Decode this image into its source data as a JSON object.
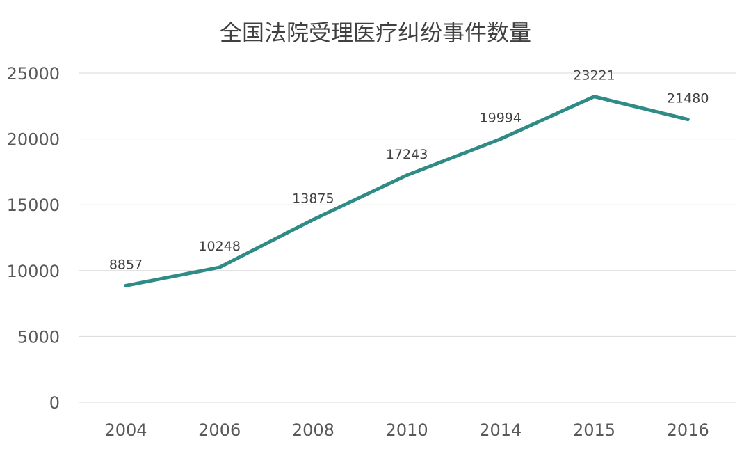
{
  "chart_data": {
    "type": "line",
    "title": "全国法院受理医疗纠纷事件数量",
    "xlabel": "",
    "ylabel": "",
    "categories": [
      "2004",
      "2006",
      "2008",
      "2010",
      "2014",
      "2015",
      "2016"
    ],
    "series": [
      {
        "values": [
          8857,
          10248,
          13875,
          17243,
          19994,
          23221,
          21480
        ],
        "color": "#2e8b85"
      }
    ],
    "ylim": [
      0,
      25000
    ],
    "yticks": [
      0,
      5000,
      10000,
      15000,
      20000,
      25000
    ],
    "grid": true,
    "legend": "none",
    "data_labels": true
  }
}
